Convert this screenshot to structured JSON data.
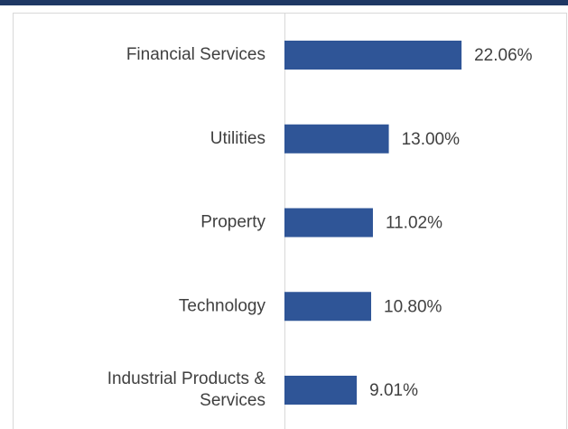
{
  "chart_data": {
    "type": "bar",
    "orientation": "horizontal",
    "categories": [
      "Financial Services",
      "Utilities",
      "Property",
      "Technology",
      "Industrial Products & Services"
    ],
    "values": [
      22.06,
      13.0,
      11.02,
      10.8,
      9.01
    ],
    "value_labels": [
      "22.06%",
      "13.00%",
      "11.02%",
      "10.80%",
      "9.01%"
    ],
    "color": "#2f5597"
  }
}
